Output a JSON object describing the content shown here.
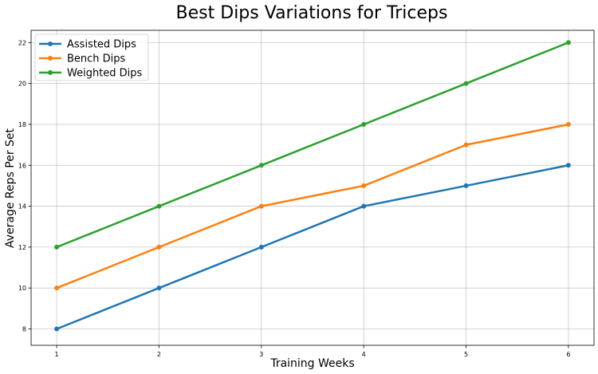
{
  "chart_data": {
    "type": "line",
    "title": "Best Dips Variations for Triceps",
    "xlabel": "Training Weeks",
    "ylabel": "Average Reps Per Set",
    "x": [
      1,
      2,
      3,
      4,
      5,
      6
    ],
    "xlim": [
      0.75,
      6.25
    ],
    "ylim": [
      7.2,
      22.6
    ],
    "yticks": [
      8,
      10,
      12,
      14,
      16,
      18,
      20,
      22
    ],
    "xticks": [
      1,
      2,
      3,
      4,
      5,
      6
    ],
    "grid": true,
    "legend_position": "top-left",
    "series": [
      {
        "name": "Assisted Dips",
        "color": "#1f77b4",
        "values": [
          8,
          10,
          12,
          14,
          15,
          16
        ]
      },
      {
        "name": "Bench Dips",
        "color": "#ff7f0e",
        "values": [
          10,
          12,
          14,
          15,
          17,
          18
        ]
      },
      {
        "name": "Weighted Dips",
        "color": "#2ca02c",
        "values": [
          12,
          14,
          16,
          18,
          20,
          22
        ]
      }
    ]
  }
}
